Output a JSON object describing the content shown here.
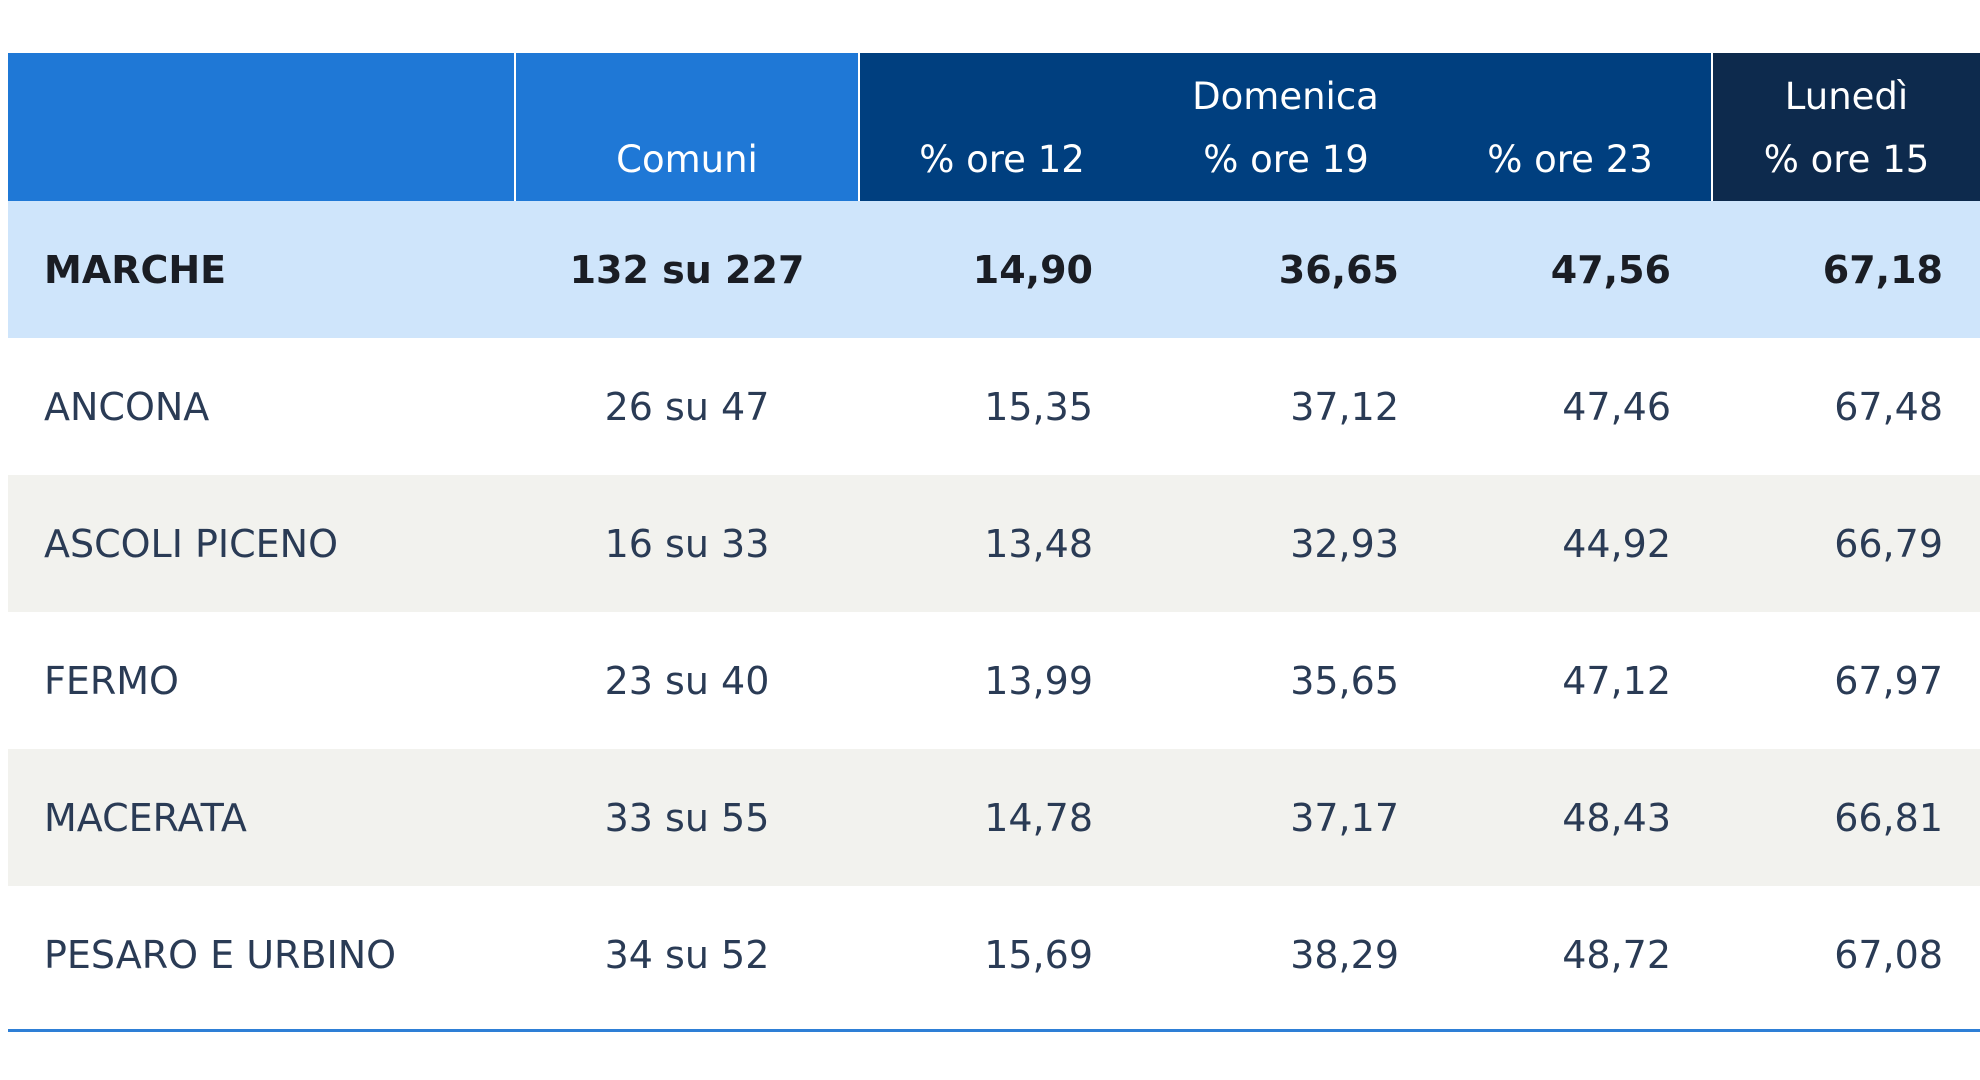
{
  "header": {
    "comuni": "Comuni",
    "domenica": "Domenica",
    "domenica_cols": [
      "% ore 12",
      "% ore 19",
      "% ore 23"
    ],
    "lunedi": "Lunedì",
    "lunedi_col": "% ore 15"
  },
  "rows": [
    {
      "name": "MARCHE",
      "comuni": "132 su 227",
      "ore12": "14,90",
      "ore19": "36,65",
      "ore23": "47,56",
      "ore15": "67,18"
    },
    {
      "name": "ANCONA",
      "comuni": "26 su 47",
      "ore12": "15,35",
      "ore19": "37,12",
      "ore23": "47,46",
      "ore15": "67,48"
    },
    {
      "name": "ASCOLI PICENO",
      "comuni": "16 su 33",
      "ore12": "13,48",
      "ore19": "32,93",
      "ore23": "44,92",
      "ore15": "66,79"
    },
    {
      "name": "FERMO",
      "comuni": "23 su 40",
      "ore12": "13,99",
      "ore19": "35,65",
      "ore23": "47,12",
      "ore15": "67,97"
    },
    {
      "name": "MACERATA",
      "comuni": "33 su 55",
      "ore12": "14,78",
      "ore19": "37,17",
      "ore23": "48,43",
      "ore15": "66,81"
    },
    {
      "name": "PESARO E URBINO",
      "comuni": "34 su 52",
      "ore12": "15,69",
      "ore19": "38,29",
      "ore23": "48,72",
      "ore15": "67,08"
    }
  ],
  "colors": {
    "header_blue": "#1f78d6",
    "header_domenica": "#003f7f",
    "header_lunedi": "#0d2a4d",
    "total_row": "#cfe5fb",
    "alt_row": "#f2f2ee"
  }
}
